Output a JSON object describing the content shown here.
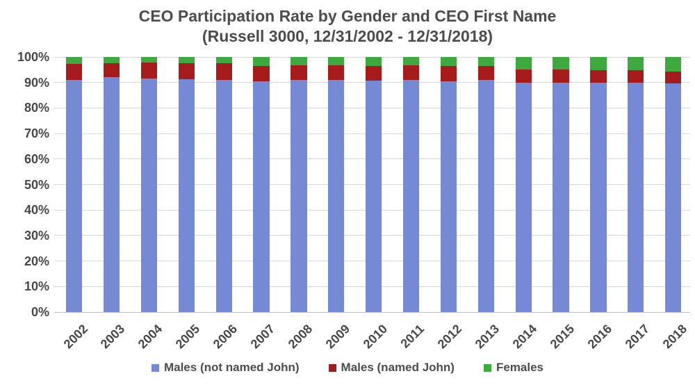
{
  "title": {
    "line1": "CEO Participation Rate by Gender and CEO First Name",
    "line2": "(Russell 3000, 12/31/2002 - 12/31/2018)"
  },
  "chart_data": {
    "type": "bar",
    "subtype": "stacked-100-percent",
    "title": "CEO Participation Rate by Gender and CEO First Name",
    "subtitle": "(Russell 3000, 12/31/2002 - 12/31/2018)",
    "categories": [
      "2002",
      "2003",
      "2004",
      "2005",
      "2006",
      "2007",
      "2008",
      "2009",
      "2010",
      "2011",
      "2012",
      "2013",
      "2014",
      "2015",
      "2016",
      "2017",
      "2018"
    ],
    "series": [
      {
        "name": "Males (not named John)",
        "color": "#7689d4",
        "values": [
          90.9,
          92.0,
          91.6,
          91.3,
          90.9,
          90.4,
          91.1,
          90.9,
          90.7,
          90.9,
          90.5,
          90.9,
          90.0,
          89.8,
          90.0,
          90.0,
          89.6
        ]
      },
      {
        "name": "Males (named John)",
        "color": "#a61c1c",
        "values": [
          6.4,
          5.6,
          6.3,
          6.2,
          6.7,
          6.1,
          5.7,
          5.8,
          5.8,
          5.8,
          6.0,
          5.5,
          5.2,
          5.2,
          4.7,
          4.7,
          4.7
        ]
      },
      {
        "name": "Females",
        "color": "#3ea93e",
        "values": [
          2.7,
          2.4,
          2.1,
          2.5,
          2.4,
          3.5,
          3.2,
          3.3,
          3.5,
          3.3,
          3.5,
          3.6,
          4.8,
          5.0,
          5.3,
          5.3,
          5.7
        ]
      }
    ],
    "xlabel": "",
    "ylabel": "",
    "ylim": [
      0,
      100
    ],
    "y_axis": {
      "min": 0,
      "max": 100,
      "tick_step": 10,
      "tick_labels": [
        "0%",
        "10%",
        "20%",
        "30%",
        "40%",
        "50%",
        "60%",
        "70%",
        "80%",
        "90%",
        "100%"
      ]
    },
    "grid": "horizontal",
    "gridline_color": "#d9d9d9",
    "legend_position": "bottom",
    "text_color": "#4c4c4c",
    "background_color": "#ffffff"
  }
}
